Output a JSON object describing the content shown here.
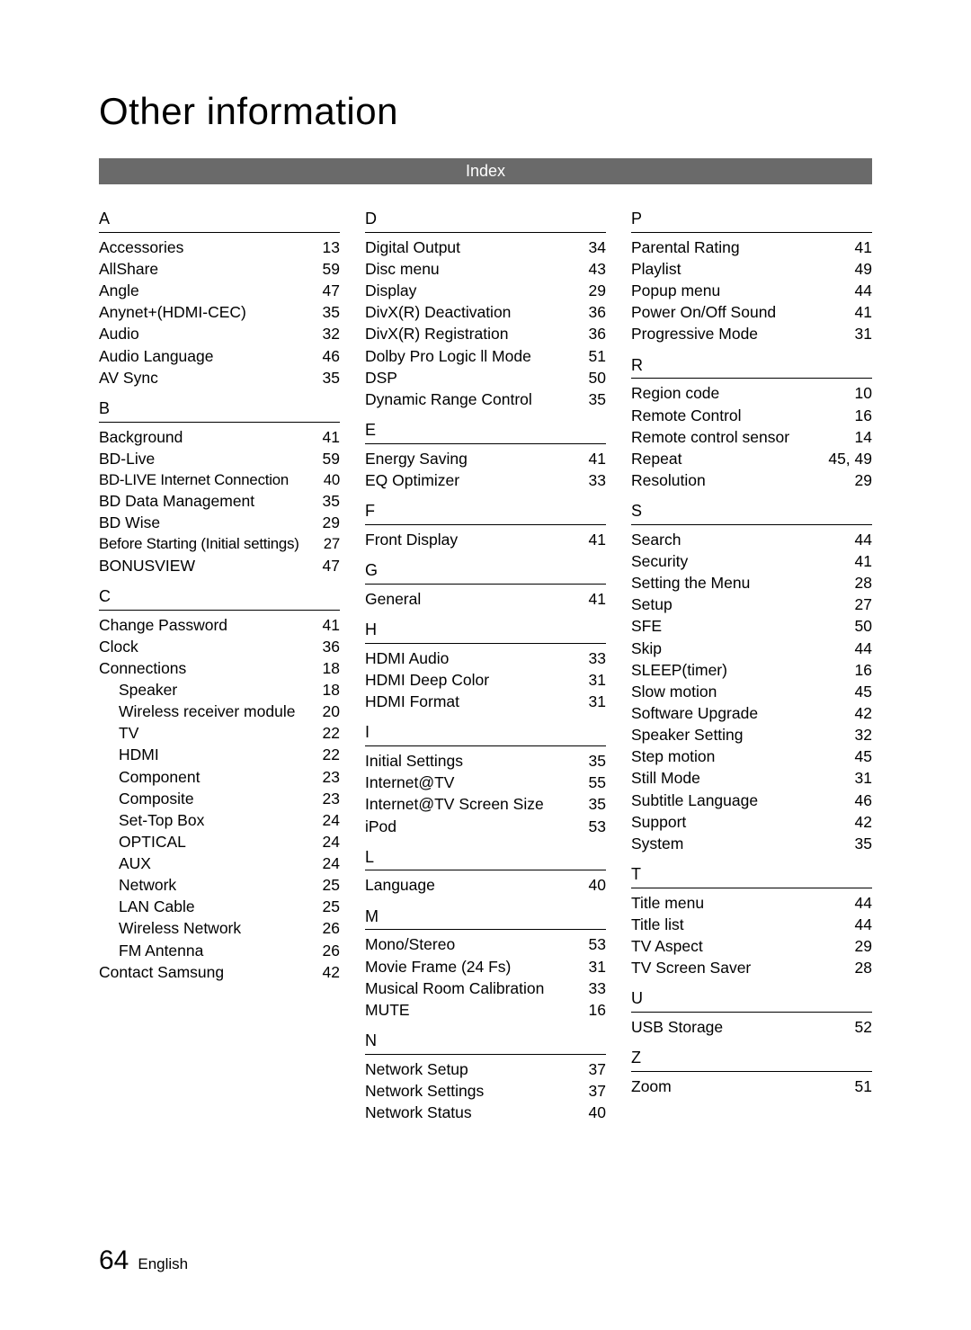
{
  "title": "Other information",
  "index_bar": "Index",
  "footer": {
    "page_number": "64",
    "language": "English"
  },
  "colors": {
    "bar_bg": "#6a6a6a",
    "bar_text": "#ffffff",
    "text": "#000000",
    "bg": "#ffffff"
  },
  "typography": {
    "title_fontsize": 42,
    "body_fontsize": 17.5,
    "footer_num_fontsize": 30
  },
  "col1": [
    {
      "letter": "A"
    },
    {
      "label": "Accessories",
      "page": "13"
    },
    {
      "label": "AllShare",
      "page": "59"
    },
    {
      "label": "Angle",
      "page": "47"
    },
    {
      "label": "Anynet+(HDMI-CEC)",
      "page": "35"
    },
    {
      "label": "Audio",
      "page": "32"
    },
    {
      "label": "Audio Language",
      "page": "46"
    },
    {
      "label": "AV Sync",
      "page": "35"
    },
    {
      "letter": "B"
    },
    {
      "label": "Background",
      "page": "41"
    },
    {
      "label": "BD-Live",
      "page": "59"
    },
    {
      "label": "BD-LIVE Internet Connection",
      "page": "40",
      "tight": true
    },
    {
      "label": "BD Data Management",
      "page": "35"
    },
    {
      "label": "BD Wise",
      "page": "29"
    },
    {
      "label": "Before Starting (Initial settings)",
      "page": "27",
      "tight": true
    },
    {
      "label": "BONUSVIEW",
      "page": "47"
    },
    {
      "letter": "C"
    },
    {
      "label": "Change Password",
      "page": "41"
    },
    {
      "label": "Clock",
      "page": "36"
    },
    {
      "label": "Connections",
      "page": "18"
    },
    {
      "label": "Speaker",
      "page": "18",
      "indent": true
    },
    {
      "label": "Wireless receiver module",
      "page": "20",
      "indent": true
    },
    {
      "label": "TV",
      "page": "22",
      "indent": true
    },
    {
      "label": "HDMI",
      "page": "22",
      "indent": true
    },
    {
      "label": "Component",
      "page": "23",
      "indent": true
    },
    {
      "label": "Composite",
      "page": "23",
      "indent": true
    },
    {
      "label": "Set-Top Box",
      "page": "24",
      "indent": true
    },
    {
      "label": "OPTICAL",
      "page": "24",
      "indent": true
    },
    {
      "label": "AUX",
      "page": "24",
      "indent": true
    },
    {
      "label": "Network",
      "page": "25",
      "indent": true
    },
    {
      "label": "LAN Cable",
      "page": "25",
      "indent": true
    },
    {
      "label": "Wireless Network",
      "page": "26",
      "indent": true
    },
    {
      "label": "FM Antenna",
      "page": "26",
      "indent": true
    },
    {
      "label": "Contact Samsung",
      "page": "42"
    }
  ],
  "col2": [
    {
      "letter": "D"
    },
    {
      "label": "Digital Output",
      "page": "34"
    },
    {
      "label": "Disc menu",
      "page": "43"
    },
    {
      "label": "Display",
      "page": "29"
    },
    {
      "label": "DivX(R) Deactivation",
      "page": "36"
    },
    {
      "label": "DivX(R) Registration",
      "page": "36"
    },
    {
      "label": "Dolby Pro Logic ll Mode",
      "page": "51"
    },
    {
      "label": "DSP",
      "page": "50"
    },
    {
      "label": "Dynamic Range Control",
      "page": "35"
    },
    {
      "letter": "E"
    },
    {
      "label": "Energy Saving",
      "page": "41"
    },
    {
      "label": "EQ Optimizer",
      "page": "33"
    },
    {
      "letter": "F"
    },
    {
      "label": "Front Display",
      "page": "41"
    },
    {
      "letter": "G"
    },
    {
      "label": "General",
      "page": "41"
    },
    {
      "letter": "H"
    },
    {
      "label": "HDMI Audio",
      "page": "33"
    },
    {
      "label": "HDMI Deep Color",
      "page": "31"
    },
    {
      "label": "HDMI Format",
      "page": "31"
    },
    {
      "letter": "I"
    },
    {
      "label": "Initial Settings",
      "page": "35"
    },
    {
      "label": "Internet@TV",
      "page": "55"
    },
    {
      "label": "Internet@TV Screen Size",
      "page": "35"
    },
    {
      "label": "iPod",
      "page": "53"
    },
    {
      "letter": "L"
    },
    {
      "label": "Language",
      "page": "40"
    },
    {
      "letter": "M"
    },
    {
      "label": "Mono/Stereo",
      "page": "53"
    },
    {
      "label": "Movie Frame (24 Fs)",
      "page": "31"
    },
    {
      "label": "Musical Room Calibration",
      "page": "33"
    },
    {
      "label": "MUTE",
      "page": "16"
    },
    {
      "letter": "N"
    },
    {
      "label": "Network Setup",
      "page": "37"
    },
    {
      "label": "Network Settings",
      "page": "37"
    },
    {
      "label": "Network Status",
      "page": "40"
    }
  ],
  "col3": [
    {
      "letter": "P"
    },
    {
      "label": "Parental Rating",
      "page": "41"
    },
    {
      "label": "Playlist",
      "page": "49"
    },
    {
      "label": "Popup menu",
      "page": "44"
    },
    {
      "label": "Power On/Off Sound",
      "page": "41"
    },
    {
      "label": "Progressive Mode",
      "page": "31"
    },
    {
      "letter": "R"
    },
    {
      "label": "Region code",
      "page": "10"
    },
    {
      "label": "Remote Control",
      "page": "16"
    },
    {
      "label": "Remote control sensor",
      "page": "14"
    },
    {
      "label": "Repeat",
      "page": "45, 49"
    },
    {
      "label": "Resolution",
      "page": "29"
    },
    {
      "letter": "S"
    },
    {
      "label": "Search",
      "page": "44"
    },
    {
      "label": "Security",
      "page": "41"
    },
    {
      "label": "Setting the Menu",
      "page": "28"
    },
    {
      "label": "Setup",
      "page": "27"
    },
    {
      "label": "SFE",
      "page": "50"
    },
    {
      "label": "Skip",
      "page": "44"
    },
    {
      "label": "SLEEP(timer)",
      "page": "16"
    },
    {
      "label": "Slow motion",
      "page": "45"
    },
    {
      "label": "Software Upgrade",
      "page": "42"
    },
    {
      "label": "Speaker Setting",
      "page": "32"
    },
    {
      "label": "Step motion",
      "page": "45"
    },
    {
      "label": "Still Mode",
      "page": "31"
    },
    {
      "label": "Subtitle Language",
      "page": "46"
    },
    {
      "label": "Support",
      "page": "42"
    },
    {
      "label": "System",
      "page": "35"
    },
    {
      "letter": "T"
    },
    {
      "label": "Title menu",
      "page": "44"
    },
    {
      "label": "Title list",
      "page": "44"
    },
    {
      "label": "TV Aspect",
      "page": "29"
    },
    {
      "label": "TV Screen Saver",
      "page": "28"
    },
    {
      "letter": "U"
    },
    {
      "label": "USB Storage",
      "page": "52"
    },
    {
      "letter": "Z"
    },
    {
      "label": "Zoom",
      "page": "51"
    }
  ]
}
